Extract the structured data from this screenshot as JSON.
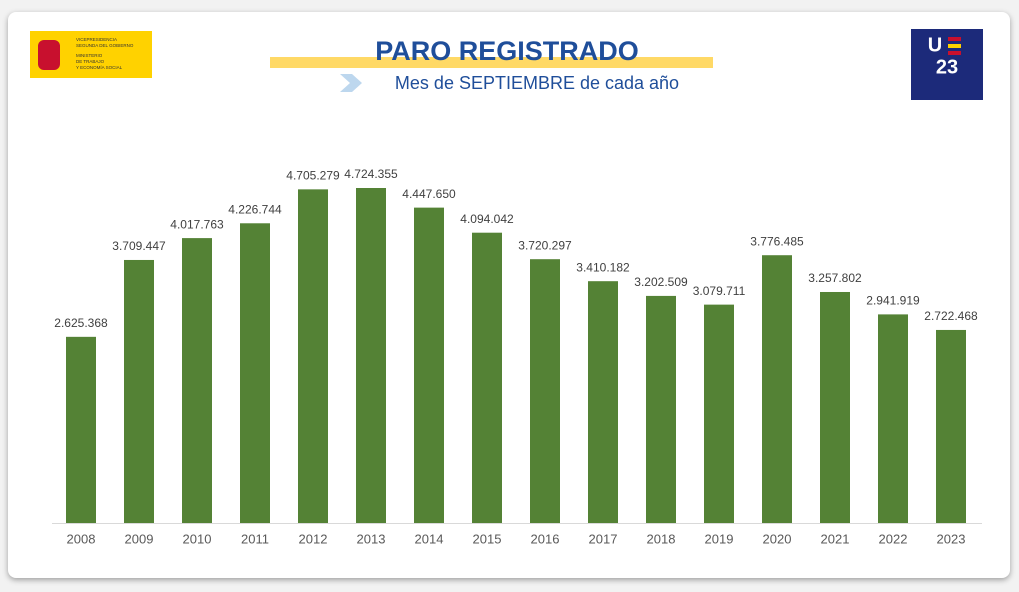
{
  "header": {
    "ministry_lines": [
      "VICEPRESIDENCIA",
      "SEGUNDA DEL GOBIERNO",
      "MINISTERIO",
      "DE TRABAJO",
      "Y ECONOMÍA SOCIAL"
    ],
    "eu_logo": [
      "U",
      "23"
    ]
  },
  "chart_data": {
    "type": "bar",
    "title": "PARO REGISTRADO",
    "subtitle": "Mes de SEPTIEMBRE de cada año",
    "categories": [
      "2008",
      "2009",
      "2010",
      "2011",
      "2012",
      "2013",
      "2014",
      "2015",
      "2016",
      "2017",
      "2018",
      "2019",
      "2020",
      "2021",
      "2022",
      "2023"
    ],
    "values": [
      2625368,
      3709447,
      4017763,
      4226744,
      4705279,
      4724355,
      4447650,
      4094042,
      3720297,
      3410182,
      3202509,
      3079711,
      3776485,
      3257802,
      2941919,
      2722468
    ],
    "value_labels": [
      "2.625.368",
      "3.709.447",
      "4.017.763",
      "4.226.744",
      "4.705.279",
      "4.724.355",
      "4.447.650",
      "4.094.042",
      "3.720.297",
      "3.410.182",
      "3.202.509",
      "3.079.711",
      "3.776.485",
      "3.257.802",
      "2.941.919",
      "2.722.468"
    ],
    "color": "#548235"
  }
}
